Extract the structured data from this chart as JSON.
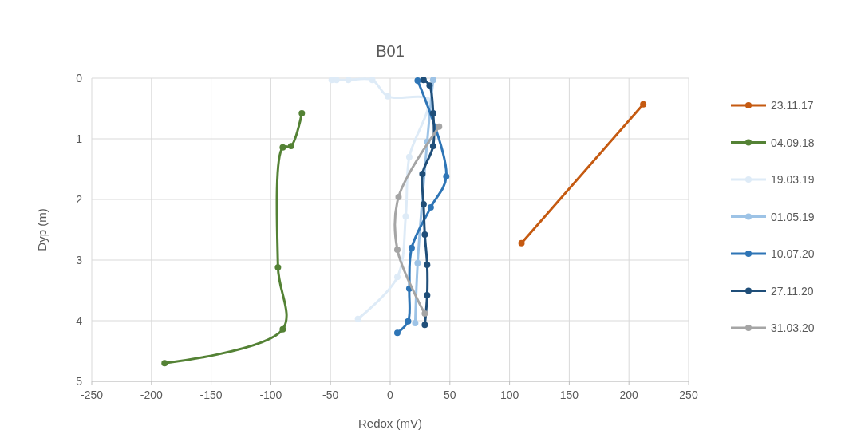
{
  "chart_data": {
    "type": "line",
    "title": "B01",
    "xlabel": "Redox (mV)",
    "ylabel": "Dyp (m)",
    "xlim": [
      -250,
      250
    ],
    "xticks": [
      -250,
      -200,
      -150,
      -100,
      -50,
      0,
      50,
      100,
      150,
      200,
      250
    ],
    "ylim": [
      5,
      0
    ],
    "yticks": [
      0,
      1,
      2,
      3,
      4,
      5
    ],
    "grid": true,
    "legend": "right",
    "marker": "circle",
    "line_style": "solid",
    "series": [
      {
        "name": "23.11.17",
        "color": "#c55a11",
        "x": [
          212,
          110
        ],
        "values": [
          0.43,
          2.72
        ]
      },
      {
        "name": "04.09.18",
        "color": "#548235",
        "x": [
          -74,
          -83,
          -90,
          -94,
          -90,
          -189
        ],
        "values": [
          0.58,
          1.12,
          1.14,
          3.12,
          4.14,
          4.7
        ]
      },
      {
        "name": "19.03.19",
        "color": "#deebf7",
        "x": [
          -49,
          -45,
          -35,
          -15,
          -2,
          31,
          16,
          13,
          6,
          -27
        ],
        "values": [
          0.03,
          0.03,
          0.03,
          0.03,
          0.3,
          0.36,
          1.3,
          2.28,
          3.28,
          3.97
        ]
      },
      {
        "name": "01.05.19",
        "color": "#9dc3e6",
        "x": [
          36,
          31,
          23,
          21
        ],
        "values": [
          0.03,
          1.05,
          3.05,
          4.04
        ]
      },
      {
        "name": "10.07.20",
        "color": "#2e75b6",
        "x": [
          23,
          47,
          34,
          18,
          16,
          15,
          6
        ],
        "values": [
          0.04,
          1.62,
          2.13,
          2.8,
          3.47,
          4.01,
          4.2
        ]
      },
      {
        "name": "27.11.20",
        "color": "#1f4e79",
        "x": [
          28,
          33,
          36,
          36,
          27,
          28,
          29,
          31,
          31,
          29
        ],
        "values": [
          0.03,
          0.12,
          0.58,
          1.12,
          1.58,
          2.08,
          2.58,
          3.08,
          3.58,
          4.07
        ]
      },
      {
        "name": "31.03.20",
        "color": "#a5a5a5",
        "x": [
          41,
          7,
          6,
          29
        ],
        "values": [
          0.8,
          1.96,
          2.83,
          3.88
        ]
      }
    ]
  }
}
